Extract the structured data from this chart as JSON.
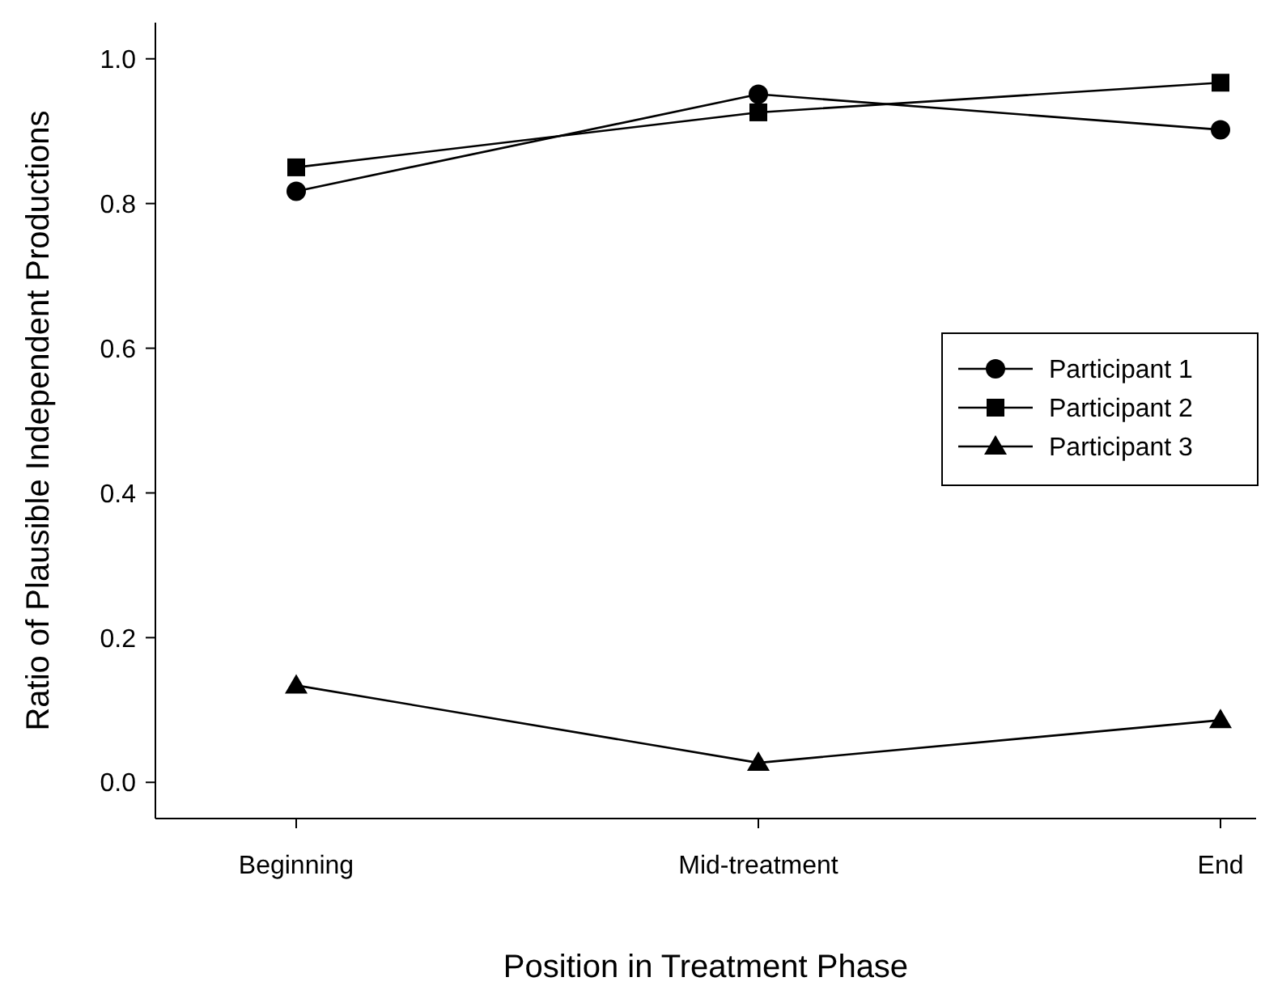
{
  "chart_data": {
    "type": "line",
    "xlabel": "Position in Treatment Phase",
    "ylabel": "Ratio of Plausible Independent Productions",
    "categories": [
      "Beginning",
      "Mid-treatment",
      "End"
    ],
    "series": [
      {
        "name": "Participant 1",
        "color": "#000000",
        "marker": "circle",
        "values": [
          0.817,
          0.951,
          0.902
        ]
      },
      {
        "name": "Participant 2",
        "color": "#000000",
        "marker": "square",
        "values": [
          0.85,
          0.926,
          0.967
        ]
      },
      {
        "name": "Participant 3",
        "color": "#000000",
        "marker": "triangle",
        "values": [
          0.134,
          0.027,
          0.086
        ]
      }
    ],
    "ylim": [
      -0.05,
      1.05
    ],
    "yticks": [
      {
        "value": 0,
        "label": "0.0"
      },
      {
        "value": 0.2,
        "label": "0.2"
      },
      {
        "value": 0.4,
        "label": "0.4"
      },
      {
        "value": 0.6,
        "label": "0.6"
      },
      {
        "value": 0.8,
        "label": "0.8"
      },
      {
        "value": 1,
        "label": "1.0"
      }
    ],
    "grid": false,
    "legend": "right",
    "line_style": "solid"
  }
}
